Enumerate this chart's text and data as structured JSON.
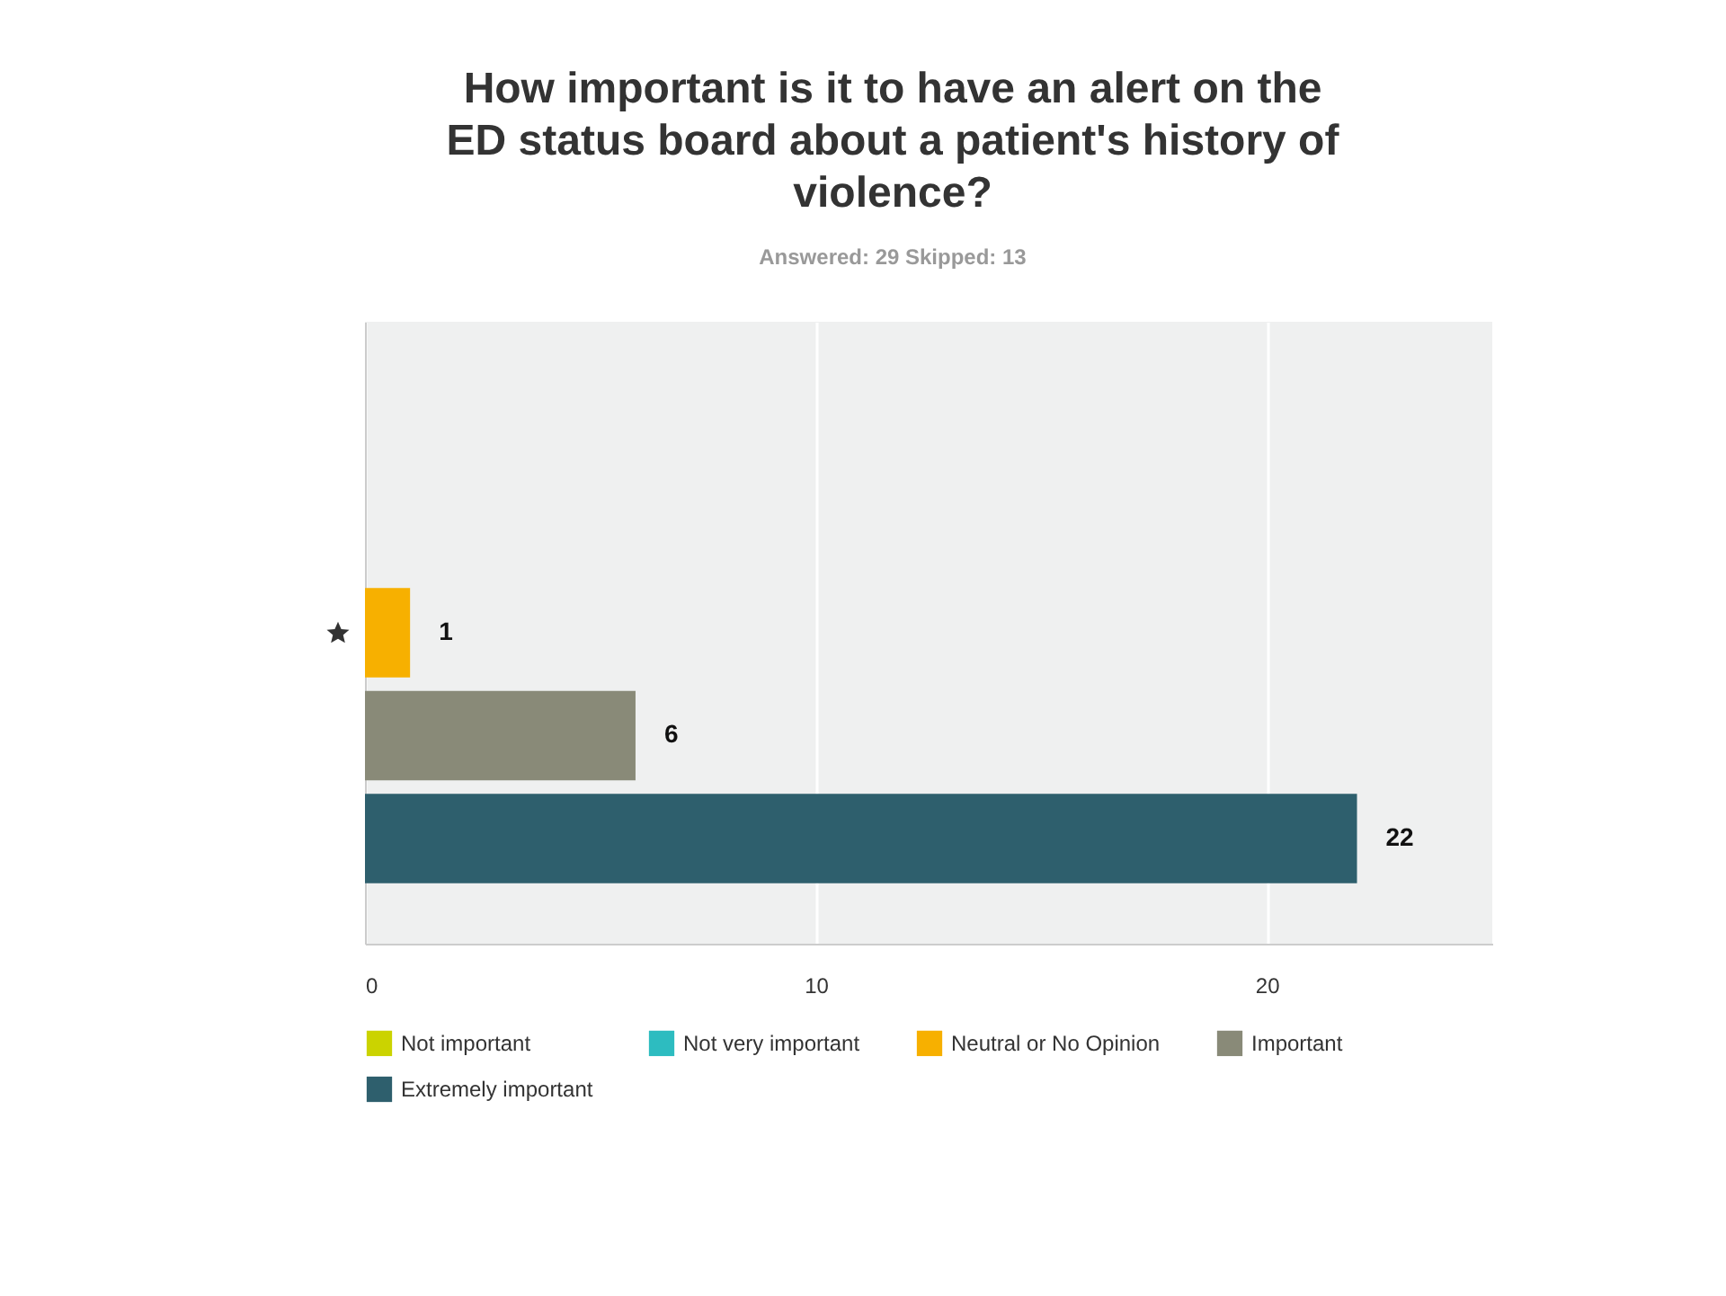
{
  "chart_data": {
    "type": "bar",
    "orientation": "horizontal",
    "title": "How important is it to have an alert on the ED status board about a patient's history of violence?",
    "subtitle": "Answered: 29   Skipped: 13",
    "categories": [
      null
    ],
    "series": [
      {
        "name": "Not important",
        "color": "#cbd300",
        "values": [
          0
        ],
        "value_labels": [
          null
        ]
      },
      {
        "name": "Not very important",
        "color": "#2dbcc0",
        "values": [
          0
        ],
        "value_labels": [
          null
        ]
      },
      {
        "name": "Neutral or No Opinion",
        "color": "#f7b000",
        "values": [
          1
        ],
        "value_labels": [
          "1"
        ]
      },
      {
        "name": "Important",
        "color": "#898a78",
        "values": [
          6
        ],
        "value_labels": [
          "6"
        ]
      },
      {
        "name": "Extremely important",
        "color": "#2e5f6d",
        "values": [
          22
        ],
        "value_labels": [
          "22"
        ]
      }
    ],
    "xlim": [
      0,
      25
    ],
    "xticks": [
      0,
      10,
      20
    ],
    "grid": "x",
    "legend": "bottom"
  }
}
